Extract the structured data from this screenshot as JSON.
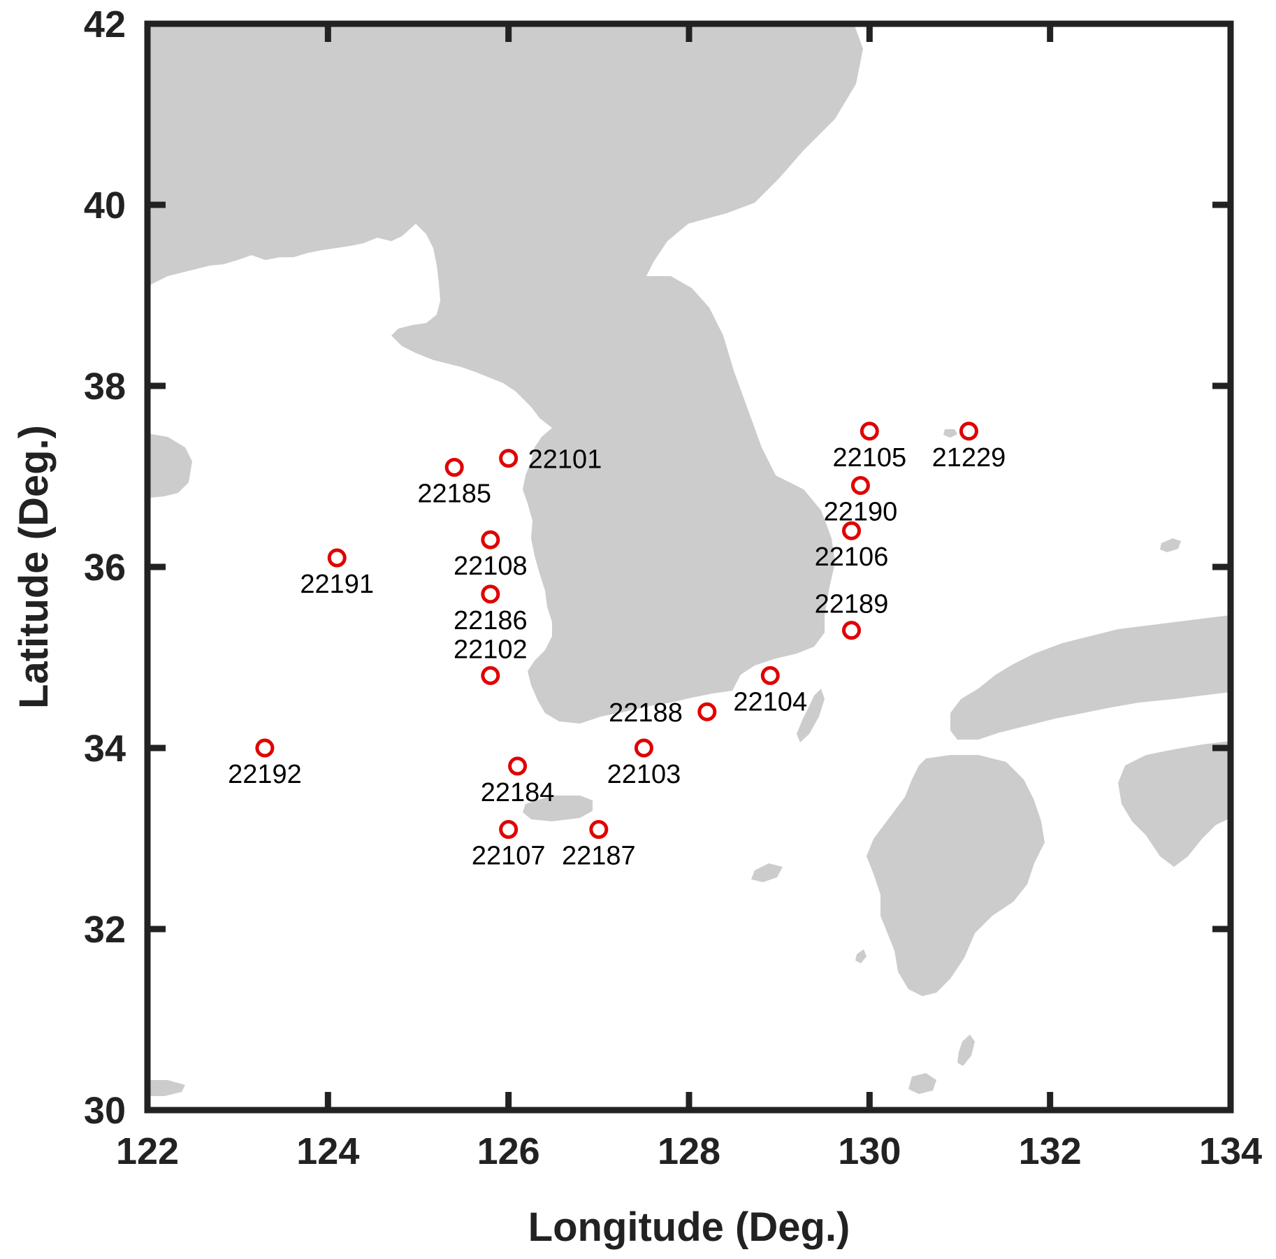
{
  "chart_data": {
    "type": "map",
    "xlabel": "Longitude (Deg.)",
    "ylabel": "Latitude (Deg.)",
    "xlim": [
      122,
      134
    ],
    "ylim": [
      30,
      42
    ],
    "xticks": [
      "122",
      "124",
      "126",
      "128",
      "130",
      "132",
      "134"
    ],
    "yticks": [
      "30",
      "32",
      "34",
      "36",
      "38",
      "40",
      "42"
    ],
    "land_color": "#cccccc",
    "marker_color": "#e00000",
    "stations": [
      {
        "id": "22101",
        "lon": 126.0,
        "lat": 37.2,
        "label_pos": "right"
      },
      {
        "id": "22185",
        "lon": 125.4,
        "lat": 37.1,
        "label_pos": "below"
      },
      {
        "id": "22108",
        "lon": 125.8,
        "lat": 36.3,
        "label_pos": "below"
      },
      {
        "id": "22191",
        "lon": 124.1,
        "lat": 36.1,
        "label_pos": "below"
      },
      {
        "id": "22186",
        "lon": 125.8,
        "lat": 35.7,
        "label_pos": "below"
      },
      {
        "id": "22102",
        "lon": 125.8,
        "lat": 34.8,
        "label_pos": "above"
      },
      {
        "id": "22192",
        "lon": 123.3,
        "lat": 34.0,
        "label_pos": "below"
      },
      {
        "id": "22184",
        "lon": 126.1,
        "lat": 33.8,
        "label_pos": "below"
      },
      {
        "id": "22107",
        "lon": 126.0,
        "lat": 33.1,
        "label_pos": "below"
      },
      {
        "id": "22187",
        "lon": 127.0,
        "lat": 33.1,
        "label_pos": "below"
      },
      {
        "id": "22103",
        "lon": 127.5,
        "lat": 34.0,
        "label_pos": "below"
      },
      {
        "id": "22188",
        "lon": 128.2,
        "lat": 34.4,
        "label_pos": "left"
      },
      {
        "id": "22104",
        "lon": 128.9,
        "lat": 34.8,
        "label_pos": "below"
      },
      {
        "id": "22189",
        "lon": 129.8,
        "lat": 35.3,
        "label_pos": "above"
      },
      {
        "id": "22106",
        "lon": 129.8,
        "lat": 36.4,
        "label_pos": "below"
      },
      {
        "id": "22190",
        "lon": 129.9,
        "lat": 36.9,
        "label_pos": "below"
      },
      {
        "id": "22105",
        "lon": 130.0,
        "lat": 37.5,
        "label_pos": "below"
      },
      {
        "id": "21229",
        "lon": 131.1,
        "lat": 37.5,
        "label_pos": "below"
      }
    ]
  }
}
